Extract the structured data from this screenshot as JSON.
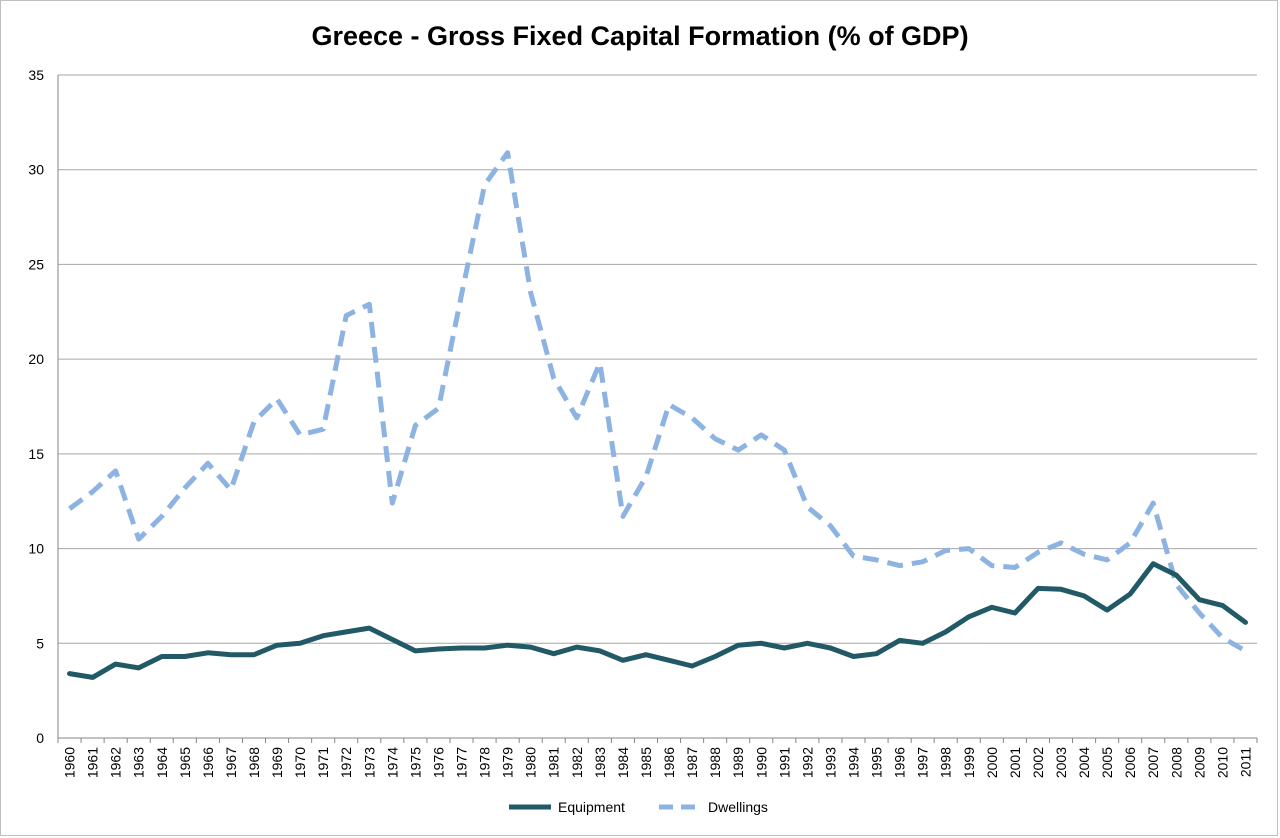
{
  "chart_data": {
    "type": "line",
    "title": "Greece - Gross Fixed Capital Formation (% of GDP)",
    "xlabel": "",
    "ylabel": "",
    "ylim": [
      0,
      35
    ],
    "yticks": [
      "0",
      "5",
      "10",
      "15",
      "20",
      "25",
      "30",
      "35"
    ],
    "grid": "horizontal",
    "legend_position": "bottom",
    "categories": [
      "1960",
      "1961",
      "1962",
      "1963",
      "1964",
      "1965",
      "1966",
      "1967",
      "1968",
      "1969",
      "1970",
      "1971",
      "1972",
      "1973",
      "1974",
      "1975",
      "1976",
      "1977",
      "1978",
      "1979",
      "1980",
      "1981",
      "1982",
      "1983",
      "1984",
      "1985",
      "1986",
      "1987",
      "1988",
      "1989",
      "1990",
      "1991",
      "1992",
      "1993",
      "1994",
      "1995",
      "1996",
      "1997",
      "1998",
      "1999",
      "2000",
      "2001",
      "2002",
      "2003",
      "2004",
      "2005",
      "2006",
      "2007",
      "2008",
      "2009",
      "2010",
      "2011"
    ],
    "series": [
      {
        "name": "Equipment",
        "color": "#215A66",
        "style": "solid",
        "values": [
          3.4,
          3.2,
          3.9,
          3.7,
          4.3,
          4.3,
          4.5,
          4.4,
          4.4,
          4.9,
          5.0,
          5.4,
          5.6,
          5.8,
          5.2,
          4.6,
          4.7,
          4.75,
          4.75,
          4.9,
          4.8,
          4.45,
          4.8,
          4.6,
          4.1,
          4.4,
          4.1,
          3.8,
          4.3,
          4.9,
          5.0,
          4.75,
          5.0,
          4.75,
          4.3,
          4.45,
          5.15,
          5.0,
          5.6,
          6.4,
          6.9,
          6.6,
          7.9,
          7.85,
          7.5,
          6.75,
          7.6,
          9.2,
          8.6,
          7.3,
          7.0,
          6.1
        ]
      },
      {
        "name": "Dwellings",
        "color": "#8DB3E2",
        "style": "dashed",
        "values": [
          12.1,
          13.0,
          14.1,
          10.5,
          11.7,
          13.2,
          14.5,
          13.1,
          16.7,
          17.9,
          16.0,
          16.3,
          22.3,
          22.9,
          12.4,
          16.5,
          17.4,
          23.4,
          29.2,
          30.9,
          23.5,
          19.0,
          16.9,
          19.8,
          11.7,
          13.8,
          17.6,
          16.9,
          15.8,
          15.2,
          16.0,
          15.2,
          12.2,
          11.2,
          9.6,
          9.4,
          9.1,
          9.3,
          9.9,
          10.0,
          9.1,
          9.0,
          9.8,
          10.3,
          9.7,
          9.4,
          10.3,
          12.4,
          8.1,
          6.6,
          5.3,
          4.6
        ]
      }
    ]
  }
}
